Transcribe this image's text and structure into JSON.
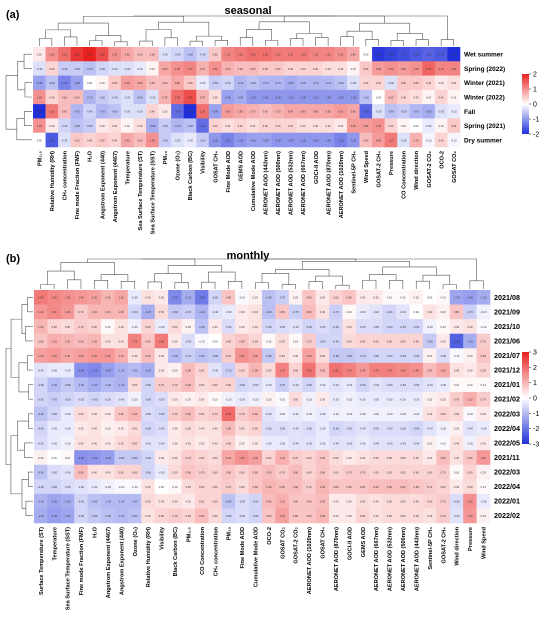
{
  "chart_data": [
    {
      "type": "heatmap",
      "panel_label": "(a)",
      "title": "seasonal",
      "rows": [
        "Wet summer",
        "Spring (2022)",
        "Winter (2021)",
        "Winter (2022)",
        "Fall",
        "Spring (2021)",
        "Dry summer"
      ],
      "columns": [
        "PM2.5",
        "Relative Humidity (RH)",
        "CH4 concentration",
        "Fine mode Fraction (FMF)",
        "H2O",
        "Angstrom Exponent (440)",
        "Angstrom Exponent (4467)",
        "Temperature",
        "Sea Surface Temperature (ST)",
        "Sea Surface Temperature (SST)",
        "PM10",
        "Ozone (O3)",
        "Black Carbon (BC)",
        "Visibility",
        "GOSAT CH4",
        "Fine Mode AOD",
        "GEMS AOD",
        "Cumulative Mode AOD",
        "AERONET AOD (443nm)",
        "AERONET AOD (500nm)",
        "AERONET AOD (532nm)",
        "AERONET AOD (667nm)",
        "GOCI-II AOD",
        "AERONET AOD (870nm)",
        "AERONET AOD (1020nm)",
        "Sentinel-5P CH4",
        "Wind Speed",
        "GOSAT-2 CH4",
        "Pressure",
        "CO Concentration",
        "Wind direction",
        "GOSAT-2 CO2",
        "OCO-2",
        "GOSAT CO2"
      ],
      "values": [
        [
          0.2,
          1.0,
          1.3,
          1.8,
          2.0,
          1.6,
          1.0,
          0.8,
          0.6,
          0.6,
          -0.3,
          -0.4,
          -0.6,
          -0.4,
          0.5,
          1.1,
          1.2,
          1.3,
          1.3,
          1.2,
          1.2,
          1.2,
          1.1,
          1.1,
          1.0,
          0.8,
          0.0,
          -1.9,
          -1.8,
          -1.7,
          -1.6,
          -1.5,
          -1.6,
          -2.0
        ],
        [
          -0.3,
          0.4,
          -0.5,
          -0.5,
          -0.6,
          -0.4,
          -0.3,
          -0.3,
          -0.2,
          0.1,
          0.8,
          1.0,
          1.1,
          0.7,
          1.0,
          0.7,
          0.6,
          0.6,
          0.5,
          0.5,
          0.4,
          0.4,
          0.4,
          0.3,
          0.3,
          0.1,
          0.5,
          0.9,
          1.0,
          0.9,
          1.0,
          1.4,
          1.1,
          1.1
        ],
        [
          -0.9,
          -0.6,
          -1.2,
          -0.9,
          0.0,
          0.1,
          0.5,
          0.9,
          0.8,
          0.6,
          0.6,
          0.8,
          0.5,
          -0.2,
          -0.5,
          -0.4,
          -0.7,
          -0.6,
          -0.7,
          -0.7,
          -0.8,
          -0.7,
          -0.7,
          -0.7,
          -0.6,
          -0.3,
          0.4,
          0.4,
          -0.3,
          0.5,
          0.5,
          0.4,
          0.2,
          0.3
        ],
        [
          1.0,
          0.4,
          0.6,
          0.6,
          -0.7,
          -0.5,
          -0.4,
          -0.3,
          -0.6,
          -0.3,
          0.7,
          1.3,
          1.6,
          0.7,
          0.3,
          -0.9,
          -0.8,
          -1.0,
          -1.0,
          -1.0,
          -1.0,
          -1.0,
          -1.0,
          -1.0,
          -1.0,
          -1.0,
          -0.6,
          0.0,
          0.6,
          0.4,
          0.3,
          0.1,
          0.4,
          0.1
        ],
        [
          -2.0,
          1.2,
          0.6,
          -0.7,
          -0.4,
          -0.7,
          -0.6,
          -0.3,
          -0.3,
          0.4,
          0.2,
          -1.4,
          -2.0,
          1.3,
          -0.9,
          0.9,
          0.8,
          0.7,
          0.6,
          0.7,
          0.8,
          0.8,
          0.8,
          0.8,
          0.9,
          0.8,
          -1.5,
          -0.3,
          -0.6,
          -0.5,
          -0.7,
          -0.8,
          -0.3,
          -0.2
        ],
        [
          1.0,
          0.2,
          -0.4,
          -0.6,
          -0.5,
          0.2,
          0.3,
          0.1,
          0.3,
          -0.8,
          -0.5,
          -0.7,
          -0.6,
          -1.4,
          0.4,
          0.3,
          0.4,
          0.3,
          0.4,
          0.4,
          0.4,
          0.3,
          0.3,
          0.3,
          0.2,
          0.9,
          0.9,
          1.0,
          0.4,
          0.1,
          0.0,
          -0.2,
          0.1,
          0.5
        ],
        [
          0.0,
          -1.6,
          -0.3,
          0.5,
          0.4,
          0.5,
          0.4,
          0.8,
          0.6,
          1.0,
          -0.5,
          -0.3,
          -0.2,
          -0.5,
          -1.0,
          -1.2,
          -1.0,
          -0.9,
          -0.9,
          -1.0,
          -1.0,
          -1.0,
          -1.0,
          -1.0,
          -1.2,
          -1.0,
          0.6,
          0.9,
          1.2,
          -0.3,
          0.7,
          -0.1,
          0.4,
          -0.1
        ]
      ],
      "colorbar": {
        "min": -2,
        "max": 2,
        "ticks": [
          2,
          1,
          0,
          -1,
          -2
        ],
        "colors": {
          "low": "#1f2fd9",
          "mid": "#ffffff",
          "high": "#e8211e"
        }
      },
      "dendrogram_top": true,
      "dendrogram_left": true
    },
    {
      "type": "heatmap",
      "panel_label": "(b)",
      "title": "monthly",
      "rows": [
        "2021/08",
        "2021/09",
        "2021/10",
        "2021/06",
        "2021/07",
        "2021/12",
        "2021/01",
        "2021/02",
        "2022/03",
        "2022/04",
        "2022/05",
        "2021/11",
        "2022/03",
        "2022/04",
        "2022/01",
        "2022/02"
      ],
      "columns": [
        "Surface Temperature (ST)",
        "Temperature",
        "Sea Surface Temperature (SST)",
        "Fine mode Fraction (FMF)",
        "H2O",
        "Angstrom Exponent (4467)",
        "Angstrom Exponent (440)",
        "Ozone (O3)",
        "Relative Humidity (RH)",
        "Visibility",
        "Black Carbon (BC)",
        "PM2.5",
        "CO Concentration",
        "CH4 concentration",
        "PM10",
        "Fine Mode AOD",
        "Cumulative Mode AOD",
        "OCO-2",
        "GOSAT CO2",
        "GOSAT-2 CO2",
        "AERONET AOD (1020nm)",
        "GOSAT CH4",
        "AERONET AOD (870nm)",
        "GOCI-II AOD",
        "GEMS AOD",
        "AERONET AOD (667nm)",
        "AERONET AOD (532nm)",
        "AERONET AOD (500nm)",
        "AERONET AOD (443nm)",
        "Sentinel-5P CH4",
        "GOSAT-2 CH4",
        "Wind direction",
        "Pressure",
        "Wind Speed"
      ],
      "values": [
        [
          1.8,
          1.6,
          1.5,
          1.4,
          1.3,
          1.0,
          1.2,
          -0.3,
          0.4,
          0.3,
          -1.7,
          -1.2,
          -1.9,
          -0.6,
          0.8,
          -0.1,
          0.2,
          -0.9,
          -0.7,
          0.2,
          0.8,
          0.3,
          0.6,
          0.8,
          0.3,
          0.3,
          0.1,
          0.1,
          0.2,
          0.0,
          0.1,
          -1.3,
          -1.4,
          -1.2
        ],
        [
          1.4,
          1.6,
          1.4,
          0.7,
          1.0,
          1.0,
          1.0,
          -0.6,
          -1.2,
          0.5,
          -0.8,
          -0.7,
          -1.1,
          -0.4,
          -0.3,
          0.3,
          0.4,
          -0.9,
          0.8,
          -0.7,
          0.9,
          0.4,
          -0.7,
          0.1,
          -0.3,
          -0.4,
          -0.6,
          -0.4,
          0.0,
          0.4,
          0.2,
          0.8,
          -0.7,
          -0.2
        ],
        [
          1.0,
          0.6,
          0.5,
          0.7,
          0.6,
          0.1,
          0.4,
          -0.2,
          0.6,
          -0.3,
          0.5,
          0.2,
          -0.9,
          0.3,
          -0.5,
          0.3,
          0.4,
          -0.6,
          -0.5,
          -0.4,
          -0.6,
          -0.5,
          -0.6,
          0.4,
          -0.5,
          -0.5,
          -0.6,
          -0.6,
          -0.6,
          -0.2,
          0.1,
          0.3,
          0.4,
          -0.1
        ],
        [
          0.8,
          1.1,
          1.0,
          0.9,
          1.0,
          0.4,
          0.4,
          1.7,
          0.8,
          1.8,
          0.3,
          -0.5,
          -0.1,
          0.0,
          0.6,
          0.8,
          0.6,
          0.1,
          0.5,
          0.1,
          0.7,
          -0.6,
          -0.6,
          0.5,
          0.6,
          0.6,
          0.6,
          0.6,
          0.6,
          -0.8,
          0.3,
          -2.3,
          -1.2,
          0.7
        ],
        [
          1.3,
          1.4,
          1.2,
          1.3,
          1.4,
          1.4,
          1.1,
          0.4,
          0.9,
          0.3,
          -1.0,
          -0.7,
          -0.9,
          -0.8,
          0.7,
          1.5,
          1.3,
          -0.8,
          0.5,
          0.3,
          1.3,
          0.5,
          -0.8,
          -0.8,
          -0.7,
          -0.6,
          -0.6,
          -0.6,
          -0.6,
          0.2,
          -0.5,
          -0.1,
          0.2,
          0.8
        ],
        [
          -0.4,
          -0.3,
          -0.3,
          -1.6,
          -1.7,
          -1.4,
          -1.1,
          -1.0,
          -1.2,
          0.3,
          0.2,
          0.9,
          0.6,
          -0.4,
          -0.7,
          0.6,
          1.0,
          0.5,
          1.7,
          0.6,
          1.9,
          0.9,
          1.9,
          1.7,
          1.4,
          1.7,
          1.7,
          1.6,
          1.5,
          0.9,
          1.2,
          0.4,
          0.3,
          0.6
        ],
        [
          -0.6,
          -1.0,
          -0.8,
          -1.0,
          -1.2,
          -1.0,
          -1.1,
          0.5,
          -0.6,
          0.7,
          0.7,
          0.9,
          0.5,
          0.6,
          0.6,
          -0.6,
          -0.5,
          -0.3,
          -0.7,
          -0.4,
          -0.6,
          -0.3,
          -0.4,
          -0.3,
          -0.6,
          -0.4,
          -0.5,
          -0.5,
          -0.5,
          -0.4,
          -0.3,
          0.1,
          0.1,
          0.1
        ],
        [
          -0.6,
          -0.7,
          -0.6,
          -0.5,
          -0.6,
          -0.5,
          -0.4,
          -0.2,
          -0.6,
          -0.5,
          0.3,
          0.2,
          0.3,
          0.1,
          -0.2,
          -0.3,
          -0.2,
          0.2,
          -0.1,
          0.5,
          -0.2,
          0.3,
          -0.3,
          -0.2,
          -0.3,
          -0.3,
          -0.3,
          -0.3,
          -0.3,
          0.2,
          0.3,
          0.7,
          1.1,
          0.7
        ],
        [
          -0.9,
          -0.6,
          -0.3,
          0.5,
          0.4,
          0.3,
          0.8,
          1.0,
          -0.5,
          -0.6,
          0.7,
          0.9,
          0.6,
          0.7,
          2.0,
          0.7,
          0.9,
          -0.4,
          -0.2,
          -0.3,
          -0.2,
          -0.3,
          -0.2,
          -0.2,
          -0.2,
          -0.2,
          -0.2,
          -0.2,
          -0.2,
          0.4,
          0.6,
          0.5,
          -0.1,
          0.3
        ],
        [
          -0.6,
          -0.3,
          -0.3,
          0.3,
          0.4,
          0.2,
          0.3,
          0.5,
          -0.6,
          -0.5,
          0.3,
          0.5,
          0.4,
          0.4,
          0.9,
          0.5,
          0.6,
          -0.5,
          -0.5,
          -0.4,
          -0.5,
          -0.3,
          -0.6,
          -0.5,
          -0.4,
          -0.5,
          -0.5,
          -0.5,
          -0.6,
          -0.4,
          -0.2,
          0.2,
          -0.4,
          -0.3
        ],
        [
          -0.5,
          -0.3,
          -0.2,
          0.4,
          0.4,
          0.3,
          0.5,
          0.6,
          -0.4,
          -0.4,
          0.3,
          0.4,
          0.3,
          0.4,
          0.6,
          0.2,
          0.3,
          -0.3,
          -0.3,
          -0.4,
          -0.4,
          -0.3,
          -0.4,
          -0.4,
          -0.3,
          -0.4,
          -0.4,
          -0.4,
          -0.4,
          0.2,
          -0.1,
          0.4,
          -0.2,
          0.3
        ],
        [
          0.2,
          0.0,
          0.1,
          -1.6,
          -1.5,
          -1.4,
          -0.8,
          -0.8,
          -0.6,
          0.3,
          0.4,
          0.7,
          0.6,
          0.5,
          1.2,
          1.5,
          1.3,
          0.6,
          1.1,
          0.7,
          0.6,
          0.8,
          0.5,
          0.3,
          0.4,
          0.5,
          0.5,
          0.5,
          0.5,
          0.3,
          0.9,
          0.4,
          0.8,
          1.4
        ],
        [
          -0.9,
          -0.5,
          -0.4,
          0.9,
          0.4,
          0.4,
          0.6,
          0.6,
          -0.6,
          -0.3,
          0.5,
          0.8,
          0.7,
          0.6,
          0.8,
          0.6,
          0.8,
          0.9,
          0.7,
          0.9,
          0.6,
          0.8,
          0.6,
          0.7,
          0.7,
          0.6,
          0.6,
          0.6,
          0.6,
          0.6,
          0.7,
          0.1,
          0.6,
          0.2
        ],
        [
          -0.6,
          -0.6,
          -0.5,
          -0.4,
          -0.3,
          -0.2,
          -0.1,
          -0.1,
          0.4,
          0.0,
          0.1,
          0.5,
          0.6,
          0.6,
          0.7,
          0.5,
          0.8,
          1.0,
          0.9,
          0.9,
          0.7,
          1.0,
          0.8,
          0.8,
          0.8,
          0.9,
          0.9,
          0.9,
          0.8,
          0.7,
          0.6,
          0.3,
          0.5,
          0.1
        ],
        [
          -1.1,
          -1.3,
          -1.2,
          -0.6,
          -0.9,
          -1.0,
          -1.0,
          -1.0,
          0.5,
          0.4,
          0.4,
          0.3,
          0.6,
          0.6,
          -0.9,
          -0.5,
          -0.6,
          0.9,
          1.1,
          0.8,
          0.8,
          0.9,
          0.3,
          0.3,
          0.5,
          0.4,
          0.5,
          0.5,
          0.5,
          0.6,
          0.7,
          -0.5,
          1.5,
          -0.3
        ],
        [
          -1.2,
          -1.4,
          -1.3,
          -0.6,
          -0.8,
          -0.9,
          -1.0,
          -0.9,
          0.4,
          0.6,
          0.7,
          0.6,
          0.9,
          0.5,
          -0.6,
          -0.5,
          -0.6,
          0.8,
          1.3,
          0.8,
          0.8,
          1.0,
          0.3,
          0.3,
          0.6,
          0.4,
          0.5,
          0.5,
          0.5,
          0.4,
          0.7,
          -0.4,
          1.4,
          0.2
        ]
      ],
      "colorbar": {
        "min": -3,
        "max": 3,
        "ticks": [
          3,
          2,
          1,
          0,
          -1,
          -2,
          -3
        ],
        "colors": {
          "low": "#1f2fd9",
          "mid": "#ffffff",
          "high": "#e8211e"
        }
      },
      "dendrogram_top": true,
      "dendrogram_left": true
    }
  ]
}
